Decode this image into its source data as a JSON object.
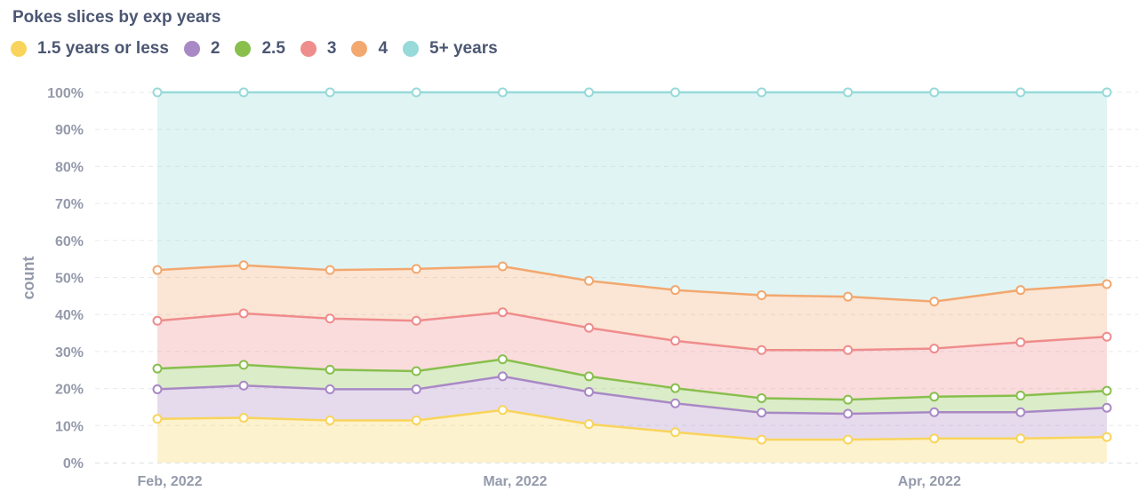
{
  "title": "Pokes slices by exp years",
  "legend": [
    {
      "label": "1.5 years or less",
      "color": "#f9d45c"
    },
    {
      "label": "2",
      "color": "#a989c5"
    },
    {
      "label": "2.5",
      "color": "#88bf4d"
    },
    {
      "label": "3",
      "color": "#ef8c8c"
    },
    {
      "label": "4",
      "color": "#f2a86f"
    },
    {
      "label": "5+ years",
      "color": "#98d9d9"
    }
  ],
  "chart_data": {
    "type": "area",
    "stacked": true,
    "normalized": true,
    "title": "Pokes slices by exp years",
    "ylabel": "count",
    "xlabel": "",
    "ylim": [
      0,
      100
    ],
    "y_ticks": [
      "0%",
      "10%",
      "20%",
      "30%",
      "40%",
      "50%",
      "60%",
      "70%",
      "80%",
      "90%",
      "100%"
    ],
    "x_tick_labels": [
      {
        "label": "Feb, 2022",
        "index": 0
      },
      {
        "label": "Mar, 2022",
        "index": 4
      },
      {
        "label": "Apr, 2022",
        "index": 8.8
      }
    ],
    "x": [
      "2022-02-01",
      "2022-02-08",
      "2022-02-15",
      "2022-02-22",
      "2022-03-01",
      "2022-03-08",
      "2022-03-15",
      "2022-03-22",
      "2022-03-29",
      "2022-04-05",
      "2022-04-12",
      "2022-04-19"
    ],
    "cumulative_percent": [
      {
        "name": "1.5 years or less",
        "color": "#f9d45c",
        "values": [
          11.8,
          12.1,
          11.4,
          11.4,
          14.2,
          10.4,
          8.2,
          6.2,
          6.2,
          6.5,
          6.5,
          6.9
        ]
      },
      {
        "name": "2",
        "color": "#a989c5",
        "values": [
          19.8,
          20.8,
          19.8,
          19.8,
          23.3,
          19.1,
          16.0,
          13.5,
          13.2,
          13.6,
          13.6,
          14.8
        ]
      },
      {
        "name": "2.5",
        "color": "#88bf4d",
        "values": [
          25.4,
          26.4,
          25.1,
          24.7,
          27.9,
          23.3,
          20.1,
          17.4,
          17.0,
          17.8,
          18.1,
          19.4
        ]
      },
      {
        "name": "3",
        "color": "#ef8c8c",
        "values": [
          38.3,
          40.3,
          38.9,
          38.3,
          40.6,
          36.4,
          32.9,
          30.4,
          30.4,
          30.8,
          32.5,
          34.0
        ]
      },
      {
        "name": "4",
        "color": "#f2a86f",
        "values": [
          52.0,
          53.3,
          52.0,
          52.3,
          53.0,
          49.1,
          46.6,
          45.2,
          44.8,
          43.5,
          46.6,
          48.2
        ]
      },
      {
        "name": "5+ years",
        "color": "#98d9d9",
        "values": [
          100,
          100,
          100,
          100,
          100,
          100,
          100,
          100,
          100,
          100,
          100,
          100
        ]
      }
    ],
    "grid": true,
    "legend_position": "top-left"
  }
}
